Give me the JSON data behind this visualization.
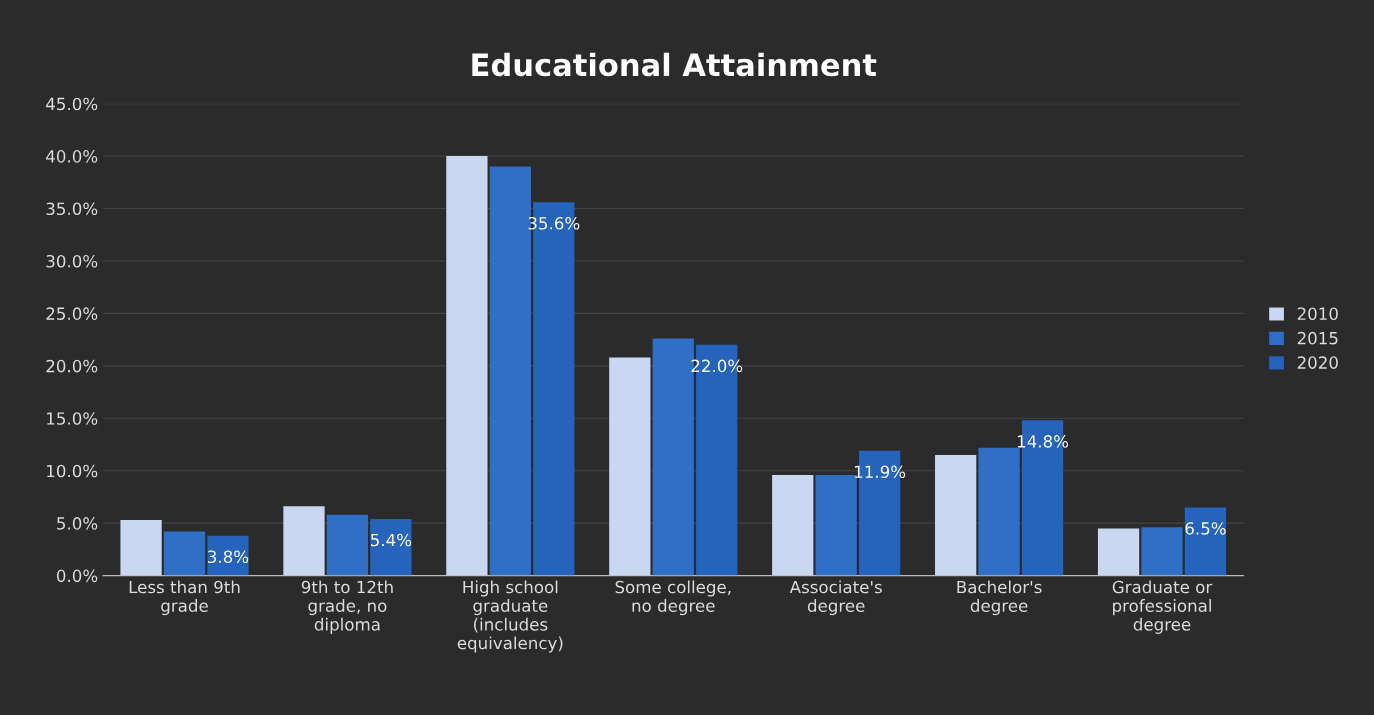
{
  "chart_data": {
    "type": "bar",
    "title": "Educational Attainment",
    "categories": [
      "Less than 9th grade",
      "9th to 12th grade, no diploma",
      "High school graduate (includes equivalency)",
      "Some college, no degree",
      "Associate's degree",
      "Bachelor's degree",
      "Graduate or professional degree"
    ],
    "series": [
      {
        "name": "2010",
        "color": "#c9d8f0",
        "values": [
          5.3,
          6.6,
          40.0,
          20.8,
          9.6,
          11.5,
          4.5
        ]
      },
      {
        "name": "2015",
        "color": "#2f6fc6",
        "values": [
          4.2,
          5.8,
          39.0,
          22.6,
          9.6,
          12.2,
          4.6
        ]
      },
      {
        "name": "2020",
        "color": "#2563bd",
        "values": [
          3.8,
          5.4,
          35.6,
          22.0,
          11.9,
          14.8,
          6.5
        ],
        "value_labels": [
          "3.8%",
          "5.4%",
          "35.6%",
          "22.0%",
          "11.9%",
          "14.8%",
          "6.5%"
        ]
      }
    ],
    "ylim": [
      0,
      45
    ],
    "yticks": [
      {
        "value": 0,
        "label": "0.0%"
      },
      {
        "value": 5,
        "label": "5.0%"
      },
      {
        "value": 10,
        "label": "10.0%"
      },
      {
        "value": 15,
        "label": "15.0%"
      },
      {
        "value": 20,
        "label": "20.0%"
      },
      {
        "value": 25,
        "label": "25.0%"
      },
      {
        "value": 30,
        "label": "30.0%"
      },
      {
        "value": 35,
        "label": "35.0%"
      },
      {
        "value": 40,
        "label": "40.0%"
      },
      {
        "value": 45,
        "label": "45.0%"
      }
    ],
    "grid": "y",
    "legend": "right"
  }
}
